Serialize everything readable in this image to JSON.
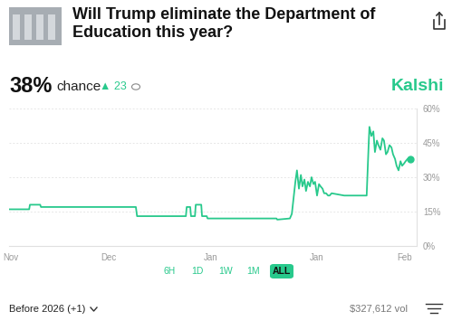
{
  "header": {
    "title": "Will Trump eliminate the Department of Education this year?",
    "value": "38%",
    "value_text": "chance",
    "change": "▲ 23",
    "brand": "Kalshi"
  },
  "chart_data": {
    "type": "line",
    "color": "#28c98c",
    "grid": true,
    "tick_labels": true,
    "x": [
      -0.5,
      4.6,
      4.8,
      7.4,
      7.6,
      31.7,
      32.0,
      44.4,
      44.6,
      45.5,
      45.7,
      46.7,
      46.9,
      48.3,
      48.5,
      49.7,
      49.9,
      67.4,
      67.6,
      70.8,
      71.3,
      72.2,
      72.6,
      73.1,
      73.6,
      74.0,
      74.5,
      74.9,
      75.4,
      75.9,
      76.3,
      76.8,
      77.2,
      77.7,
      78.2,
      78.6,
      79.1,
      79.5,
      80.0,
      80.5,
      80.9,
      81.4,
      84.6,
      86.9,
      89.2,
      90.3,
      90.8,
      91.0,
      91.5,
      92.0,
      92.4,
      92.9,
      93.3,
      93.8,
      94.3,
      94.7,
      95.2,
      95.6,
      96.1,
      96.6,
      97.0,
      97.5,
      97.9,
      98.4,
      98.9,
      99.3,
      99.8,
      100.2,
      100.7,
      101.4
    ],
    "values": [
      16,
      16,
      18,
      18,
      17,
      17,
      13,
      13,
      17,
      17,
      13,
      13,
      18,
      18,
      13,
      13,
      12,
      12,
      11.5,
      12,
      14,
      28,
      33,
      25,
      31,
      26,
      29,
      24,
      28,
      26,
      30,
      27,
      28,
      22,
      27,
      26,
      25,
      23,
      23,
      22,
      22,
      23,
      22,
      22,
      22,
      22,
      44,
      52,
      48,
      50,
      41,
      46,
      44,
      42,
      47,
      46,
      40,
      41,
      44,
      43,
      40,
      38,
      35,
      33,
      37,
      35,
      36,
      37,
      38,
      38
    ],
    "xlim": [
      -0.5,
      103
    ],
    "xticks": [
      {
        "value": 0,
        "label": "Nov"
      },
      {
        "value": 24.8,
        "label": "Dec"
      },
      {
        "value": 50.6,
        "label": "Jan"
      },
      {
        "value": 77.7,
        "label": "Jan"
      },
      {
        "value": 100,
        "label": "Feb"
      }
    ],
    "ylim": [
      0,
      60
    ],
    "yticks": [
      {
        "value": 0,
        "label": "0%"
      },
      {
        "value": 15,
        "label": "15%"
      },
      {
        "value": 30,
        "label": "30%"
      },
      {
        "value": 45,
        "label": "45%"
      },
      {
        "value": 60,
        "label": "60%"
      }
    ]
  },
  "range_buttons": {
    "labels": [
      "6H",
      "1D",
      "1W",
      "1M",
      "ALL"
    ],
    "selected": "ALL"
  },
  "footer": {
    "market": "Before 2026 (+1)",
    "volume": "$327,612 vol"
  }
}
